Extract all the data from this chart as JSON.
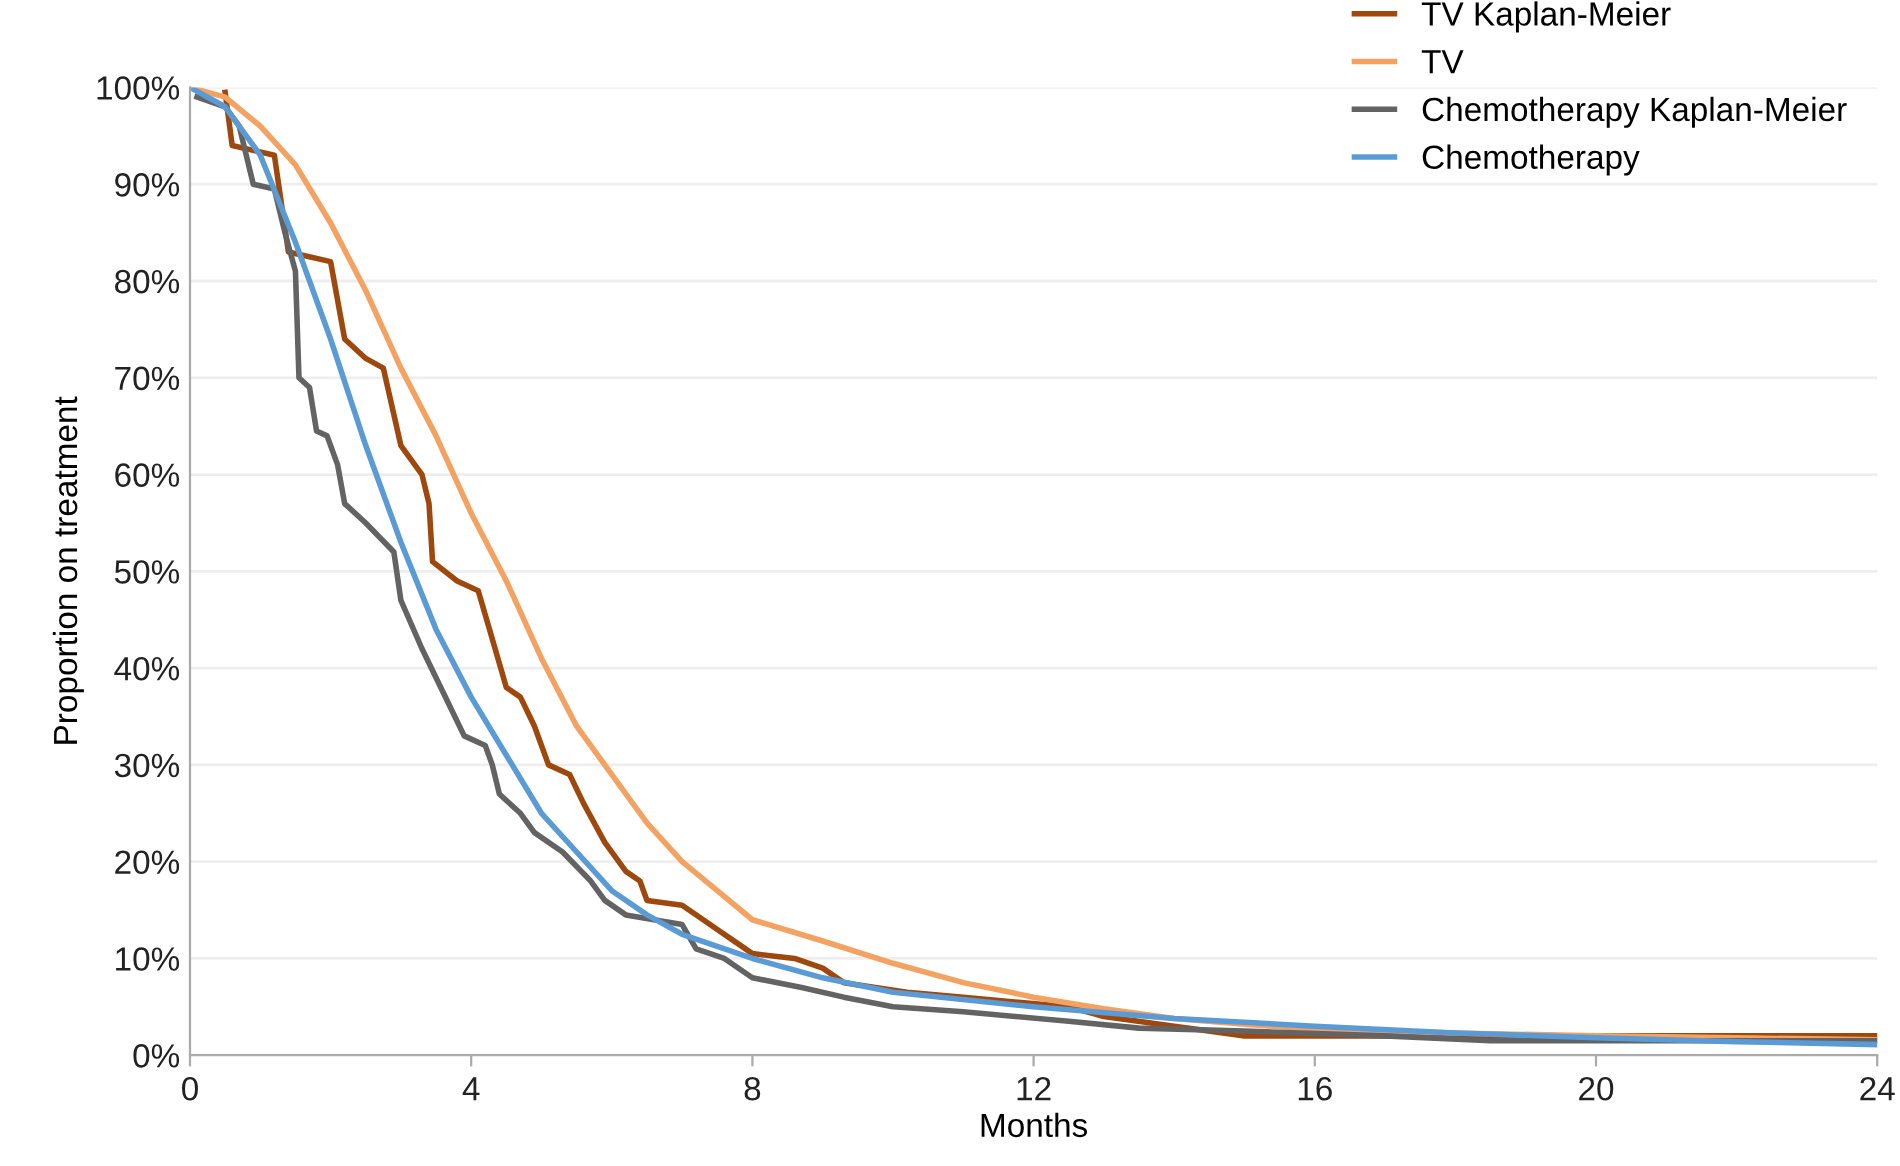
{
  "chart_data": {
    "type": "line",
    "xlabel": "Months",
    "ylabel": "Proportion on treatment",
    "xlim": [
      0,
      24
    ],
    "xticks": [
      0,
      4,
      8,
      12,
      16,
      20,
      24
    ],
    "ylim": [
      0,
      1
    ],
    "yticks": [
      {
        "value": 0,
        "label": "0%"
      },
      {
        "value": 0.1,
        "label": "10%"
      },
      {
        "value": 0.2,
        "label": "20%"
      },
      {
        "value": 0.3,
        "label": "30%"
      },
      {
        "value": 0.4,
        "label": "40%"
      },
      {
        "value": 0.5,
        "label": "50%"
      },
      {
        "value": 0.6,
        "label": "60%"
      },
      {
        "value": 0.7,
        "label": "70%"
      },
      {
        "value": 0.8,
        "label": "80%"
      },
      {
        "value": 0.9,
        "label": "90%"
      },
      {
        "value": 1,
        "label": "100%"
      }
    ],
    "grid": "y",
    "legend": "top right",
    "marker": "none",
    "line_style": "solid",
    "series": [
      {
        "name": "TV Kaplan-Meier",
        "color": "#9e480e",
        "x": [
          0.5,
          0.6,
          1.2,
          1.4,
          2.0,
          2.2,
          2.5,
          2.75,
          3.0,
          3.3,
          3.4,
          3.45,
          3.8,
          4.1,
          4.3,
          4.5,
          4.7,
          4.9,
          5.1,
          5.4,
          5.6,
          5.9,
          6.2,
          6.4,
          6.5,
          7.0,
          7.3,
          7.5,
          7.7,
          8.0,
          8.6,
          9.0,
          9.3,
          10.2,
          11,
          12.5,
          13.0,
          14,
          15,
          24
        ],
        "values": [
          0.995,
          0.94,
          0.93,
          0.83,
          0.82,
          0.74,
          0.72,
          0.71,
          0.63,
          0.6,
          0.57,
          0.51,
          0.49,
          0.48,
          0.43,
          0.38,
          0.37,
          0.34,
          0.3,
          0.29,
          0.26,
          0.22,
          0.19,
          0.18,
          0.16,
          0.155,
          0.14,
          0.13,
          0.12,
          0.105,
          0.1,
          0.09,
          0.075,
          0.065,
          0.06,
          0.05,
          0.04,
          0.03,
          0.02,
          0.02
        ]
      },
      {
        "name": "TV",
        "color": "#f4a261",
        "x": [
          0,
          0.5,
          1,
          1.5,
          2,
          2.5,
          3,
          3.5,
          4,
          4.5,
          5,
          5.5,
          6,
          6.5,
          7,
          7.5,
          8,
          9,
          10,
          11,
          12,
          13,
          14,
          15,
          16,
          18,
          20,
          22,
          24
        ],
        "values": [
          1,
          0.99,
          0.96,
          0.92,
          0.86,
          0.79,
          0.71,
          0.64,
          0.56,
          0.49,
          0.41,
          0.34,
          0.29,
          0.24,
          0.2,
          0.17,
          0.14,
          0.118,
          0.095,
          0.075,
          0.06,
          0.048,
          0.038,
          0.032,
          0.027,
          0.023,
          0.02,
          0.018,
          0.016
        ]
      },
      {
        "name": "Chemotherapy Kaplan-Meier",
        "color": "#636363",
        "x": [
          0.1,
          0.5,
          0.7,
          0.9,
          1.2,
          1.35,
          1.5,
          1.55,
          1.7,
          1.8,
          1.95,
          2.1,
          2.2,
          2.5,
          2.9,
          3.0,
          3.3,
          3.5,
          3.7,
          3.9,
          4.2,
          4.3,
          4.4,
          4.7,
          4.9,
          5.3,
          5.7,
          5.9,
          6.2,
          6.6,
          7.0,
          7.2,
          7.6,
          8.0,
          8.7,
          9.3,
          10,
          11,
          12.5,
          13.5,
          15,
          17,
          18.5,
          24
        ],
        "values": [
          0.99,
          0.98,
          0.96,
          0.9,
          0.895,
          0.85,
          0.81,
          0.7,
          0.69,
          0.645,
          0.64,
          0.61,
          0.57,
          0.55,
          0.52,
          0.47,
          0.42,
          0.39,
          0.36,
          0.33,
          0.32,
          0.3,
          0.27,
          0.25,
          0.23,
          0.21,
          0.18,
          0.16,
          0.145,
          0.14,
          0.135,
          0.11,
          0.1,
          0.08,
          0.07,
          0.06,
          0.05,
          0.045,
          0.035,
          0.028,
          0.025,
          0.02,
          0.015,
          0.015
        ]
      },
      {
        "name": "Chemotherapy",
        "color": "#5b9bd5",
        "x": [
          0,
          0.5,
          1,
          1.5,
          2,
          2.5,
          3,
          3.5,
          4,
          4.5,
          5,
          5.5,
          6,
          6.5,
          7,
          8,
          9,
          10,
          12,
          14,
          16,
          18,
          20,
          22,
          24
        ],
        "values": [
          1,
          0.98,
          0.93,
          0.84,
          0.74,
          0.63,
          0.53,
          0.44,
          0.37,
          0.31,
          0.25,
          0.21,
          0.17,
          0.145,
          0.125,
          0.1,
          0.08,
          0.065,
          0.05,
          0.038,
          0.03,
          0.023,
          0.018,
          0.014,
          0.011
        ]
      }
    ]
  }
}
